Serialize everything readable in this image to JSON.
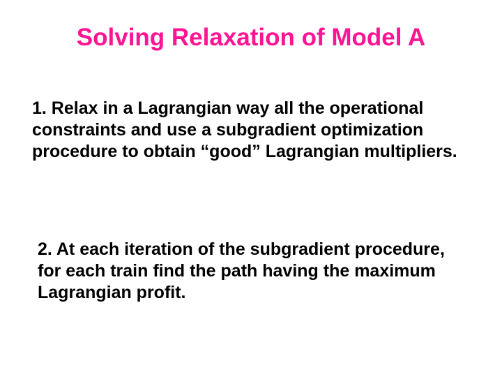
{
  "colors": {
    "title": "#ff1493",
    "body": "#000000",
    "background": "#ffffff"
  },
  "typography": {
    "title_fontsize": 35,
    "body_fontsize": 25,
    "font_family": "Arial",
    "font_weight": "bold"
  },
  "title": "Solving Relaxation of Model A",
  "paragraphs": [
    "1. Relax in a Lagrangian way all the operational constraints and use a subgradient optimization procedure to obtain “good” Lagrangian multipliers.",
    "2. At each iteration of the subgradient procedure, for each train find the path having the maximum Lagrangian profit."
  ]
}
